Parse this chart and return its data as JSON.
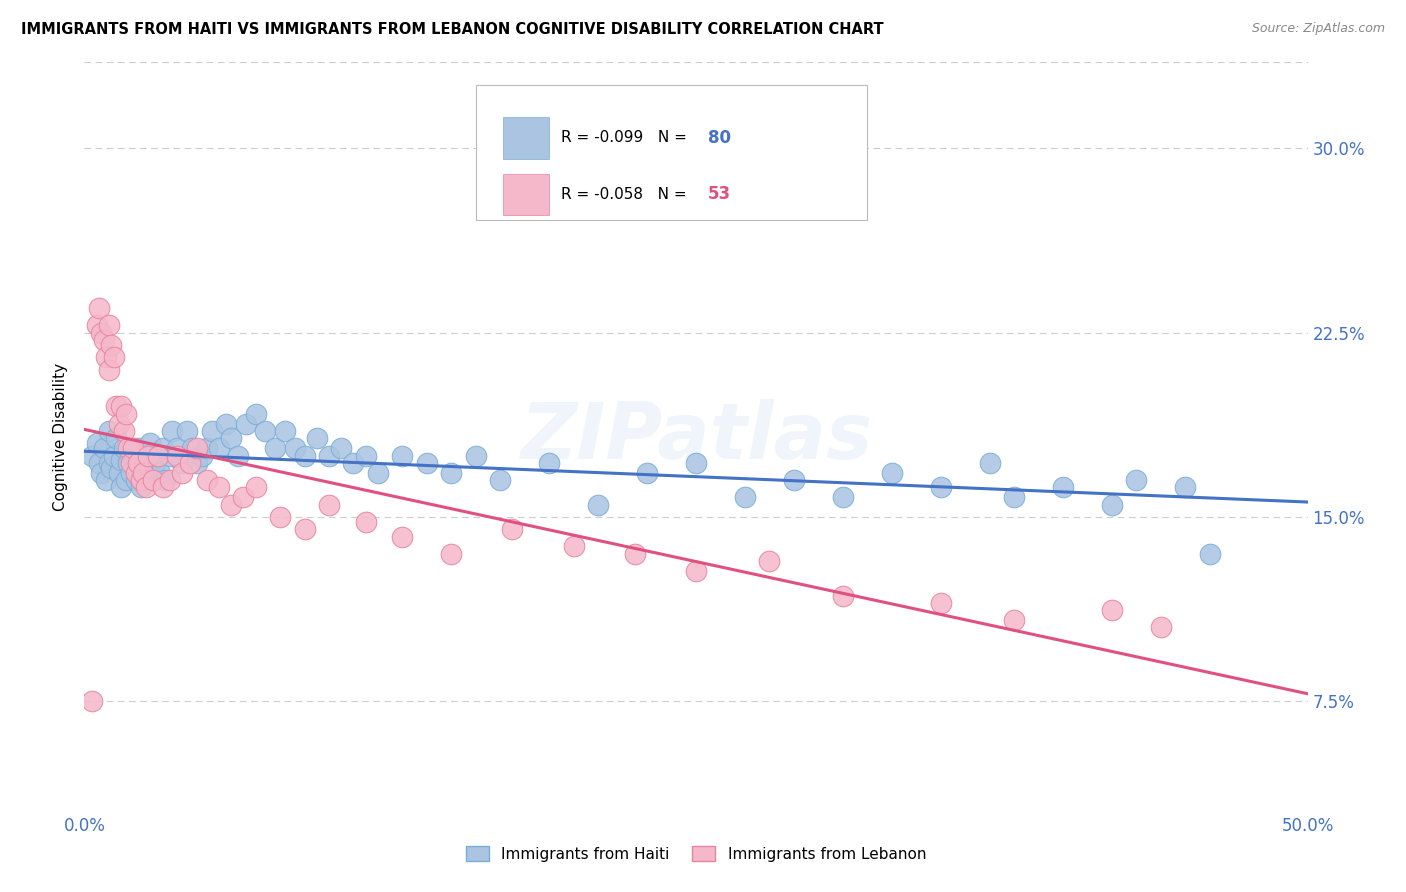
{
  "title": "IMMIGRANTS FROM HAITI VS IMMIGRANTS FROM LEBANON COGNITIVE DISABILITY CORRELATION CHART",
  "source": "Source: ZipAtlas.com",
  "ylabel": "Cognitive Disability",
  "ytick_labels": [
    "7.5%",
    "15.0%",
    "22.5%",
    "30.0%"
  ],
  "ytick_values": [
    0.075,
    0.15,
    0.225,
    0.3
  ],
  "xlim": [
    0.0,
    0.5
  ],
  "ylim": [
    0.03,
    0.335
  ],
  "haiti_color": "#aac4e2",
  "haiti_edge_color": "#7aaed6",
  "lebanon_color": "#f5b8cb",
  "lebanon_edge_color": "#e8849e",
  "haiti_line_color": "#4472c4",
  "lebanon_line_color": "#e05080",
  "haiti_R": "-0.099",
  "haiti_N": "80",
  "lebanon_R": "-0.058",
  "lebanon_N": "53",
  "legend_label_haiti": "Immigrants from Haiti",
  "legend_label_lebanon": "Immigrants from Lebanon",
  "watermark": "ZIPatlas",
  "haiti_x": [
    0.003,
    0.005,
    0.006,
    0.007,
    0.008,
    0.009,
    0.01,
    0.01,
    0.011,
    0.012,
    0.013,
    0.014,
    0.015,
    0.015,
    0.016,
    0.017,
    0.018,
    0.019,
    0.02,
    0.021,
    0.022,
    0.023,
    0.024,
    0.025,
    0.026,
    0.027,
    0.028,
    0.029,
    0.03,
    0.031,
    0.032,
    0.033,
    0.035,
    0.036,
    0.038,
    0.04,
    0.042,
    0.044,
    0.046,
    0.048,
    0.05,
    0.052,
    0.055,
    0.058,
    0.06,
    0.063,
    0.066,
    0.07,
    0.074,
    0.078,
    0.082,
    0.086,
    0.09,
    0.095,
    0.1,
    0.105,
    0.11,
    0.115,
    0.12,
    0.13,
    0.14,
    0.15,
    0.16,
    0.17,
    0.19,
    0.21,
    0.23,
    0.25,
    0.27,
    0.29,
    0.31,
    0.33,
    0.35,
    0.37,
    0.38,
    0.4,
    0.42,
    0.43,
    0.45,
    0.46
  ],
  "haiti_y": [
    0.175,
    0.18,
    0.172,
    0.168,
    0.178,
    0.165,
    0.172,
    0.185,
    0.17,
    0.175,
    0.182,
    0.168,
    0.173,
    0.162,
    0.178,
    0.165,
    0.172,
    0.168,
    0.175,
    0.165,
    0.178,
    0.162,
    0.172,
    0.175,
    0.168,
    0.18,
    0.165,
    0.172,
    0.175,
    0.168,
    0.178,
    0.165,
    0.175,
    0.185,
    0.178,
    0.172,
    0.185,
    0.178,
    0.172,
    0.175,
    0.178,
    0.185,
    0.178,
    0.188,
    0.182,
    0.175,
    0.188,
    0.192,
    0.185,
    0.178,
    0.185,
    0.178,
    0.175,
    0.182,
    0.175,
    0.178,
    0.172,
    0.175,
    0.168,
    0.175,
    0.172,
    0.168,
    0.175,
    0.165,
    0.172,
    0.155,
    0.168,
    0.172,
    0.158,
    0.165,
    0.158,
    0.168,
    0.162,
    0.172,
    0.158,
    0.162,
    0.155,
    0.165,
    0.162,
    0.135
  ],
  "lebanon_x": [
    0.003,
    0.005,
    0.006,
    0.007,
    0.008,
    0.009,
    0.01,
    0.01,
    0.011,
    0.012,
    0.013,
    0.014,
    0.015,
    0.016,
    0.017,
    0.018,
    0.019,
    0.02,
    0.021,
    0.022,
    0.023,
    0.024,
    0.025,
    0.026,
    0.028,
    0.03,
    0.032,
    0.035,
    0.038,
    0.04,
    0.043,
    0.046,
    0.05,
    0.055,
    0.06,
    0.065,
    0.07,
    0.08,
    0.09,
    0.1,
    0.115,
    0.13,
    0.15,
    0.175,
    0.2,
    0.225,
    0.25,
    0.28,
    0.31,
    0.35,
    0.38,
    0.42,
    0.44
  ],
  "lebanon_y": [
    0.075,
    0.228,
    0.235,
    0.225,
    0.222,
    0.215,
    0.228,
    0.21,
    0.22,
    0.215,
    0.195,
    0.188,
    0.195,
    0.185,
    0.192,
    0.178,
    0.172,
    0.178,
    0.168,
    0.172,
    0.165,
    0.168,
    0.162,
    0.175,
    0.165,
    0.175,
    0.162,
    0.165,
    0.175,
    0.168,
    0.172,
    0.178,
    0.165,
    0.162,
    0.155,
    0.158,
    0.162,
    0.15,
    0.145,
    0.155,
    0.148,
    0.142,
    0.135,
    0.145,
    0.138,
    0.135,
    0.128,
    0.132,
    0.118,
    0.115,
    0.108,
    0.112,
    0.105
  ],
  "background_color": "#ffffff",
  "grid_color": "#cccccc"
}
